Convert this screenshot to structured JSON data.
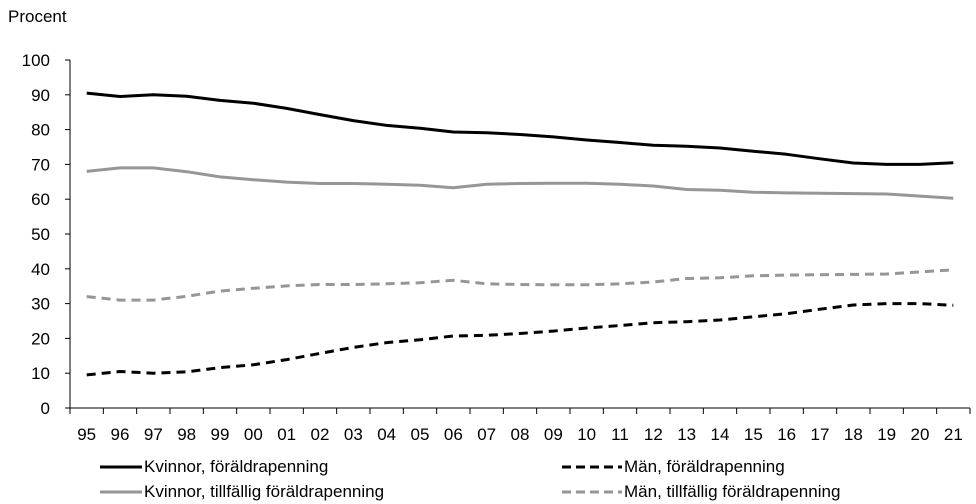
{
  "chart_data": {
    "type": "line",
    "title": "",
    "ylabel": "Procent",
    "xlabel": "",
    "ylim": [
      0,
      100
    ],
    "yticks": [
      "0",
      "10",
      "20",
      "30",
      "40",
      "50",
      "60",
      "70",
      "80",
      "90",
      "100"
    ],
    "categories": [
      "95",
      "96",
      "97",
      "98",
      "99",
      "00",
      "01",
      "02",
      "03",
      "04",
      "05",
      "06",
      "07",
      "08",
      "09",
      "10",
      "11",
      "12",
      "13",
      "14",
      "15",
      "16",
      "17",
      "18",
      "19",
      "20",
      "21"
    ],
    "grid": false,
    "legend_placement": "bottom",
    "series": [
      {
        "name": "Kvinnor, föräldrapenning",
        "color": "#000000",
        "dash": "solid",
        "values": [
          90.5,
          89.5,
          90.0,
          89.6,
          88.4,
          87.6,
          86.1,
          84.3,
          82.6,
          81.2,
          80.4,
          79.3,
          79.1,
          78.6,
          77.9,
          77.0,
          76.3,
          75.5,
          75.2,
          74.7,
          73.8,
          72.9,
          71.6,
          70.4,
          70.0,
          70.0,
          70.5
        ]
      },
      {
        "name": "Män, föräldrapenning",
        "color": "#000000",
        "dash": "dashed",
        "values": [
          9.5,
          10.5,
          10.0,
          10.4,
          11.6,
          12.4,
          13.9,
          15.7,
          17.4,
          18.8,
          19.6,
          20.7,
          20.9,
          21.4,
          22.1,
          23.0,
          23.7,
          24.5,
          24.8,
          25.3,
          26.2,
          27.1,
          28.4,
          29.6,
          30.0,
          30.0,
          29.5
        ]
      },
      {
        "name": "Kvinnor, tillfällig föräldrapenning",
        "color": "#969696",
        "dash": "solid",
        "values": [
          68.0,
          69.0,
          69.0,
          67.9,
          66.4,
          65.6,
          64.9,
          64.5,
          64.5,
          64.3,
          64.0,
          63.3,
          64.3,
          64.5,
          64.6,
          64.6,
          64.3,
          63.8,
          62.8,
          62.6,
          62.0,
          61.8,
          61.7,
          61.6,
          61.5,
          60.9,
          60.3
        ]
      },
      {
        "name": "Män, tillfällig föräldrapenning",
        "color": "#969696",
        "dash": "dashed",
        "values": [
          32.0,
          31.0,
          31.0,
          32.1,
          33.6,
          34.4,
          35.1,
          35.5,
          35.5,
          35.7,
          36.0,
          36.7,
          35.7,
          35.5,
          35.4,
          35.4,
          35.7,
          36.2,
          37.2,
          37.4,
          38.0,
          38.2,
          38.3,
          38.4,
          38.5,
          39.1,
          39.7
        ]
      }
    ]
  }
}
